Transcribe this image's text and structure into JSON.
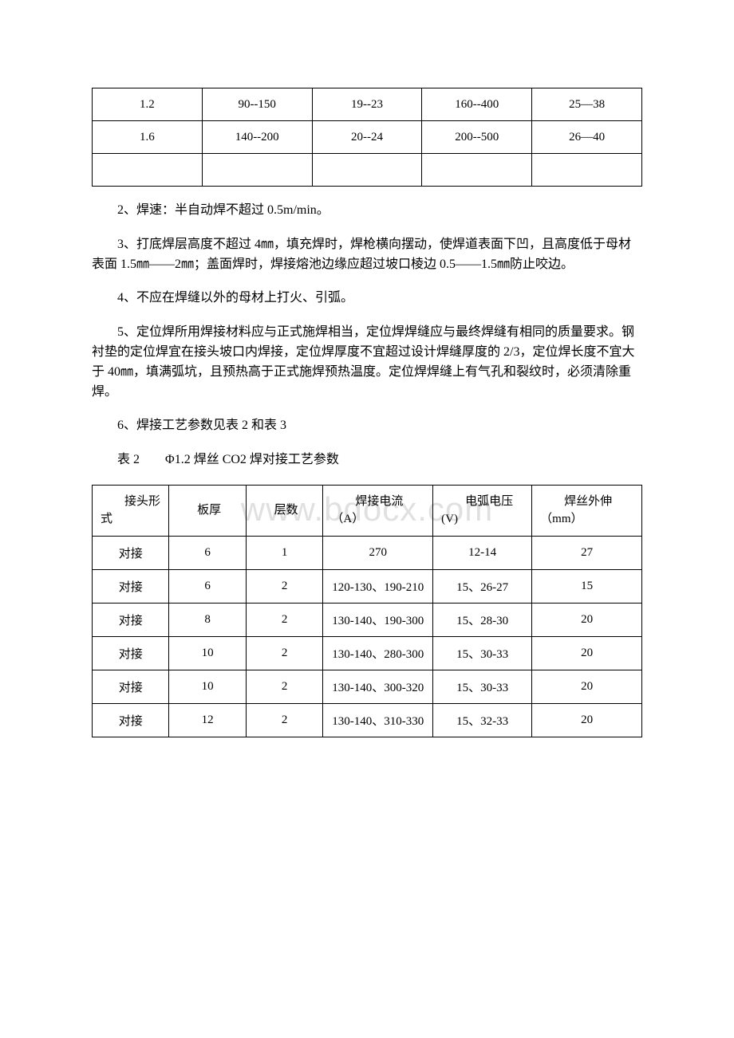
{
  "watermark_text": "www.bdocx.com",
  "table1": {
    "rows": [
      [
        "1.2",
        "90--150",
        "19--23",
        "160--400",
        "25—38"
      ],
      [
        "1.6",
        "140--200",
        "20--24",
        "200--500",
        "26—40"
      ],
      [
        "",
        "",
        "",
        "",
        ""
      ]
    ]
  },
  "paragraphs": {
    "p2": "2、焊速：半自动焊不超过 0.5m/min。",
    "p3": "3、打底焊层高度不超过 4㎜，填充焊时，焊枪横向摆动，使焊道表面下凹，且高度低于母材表面 1.5㎜——2㎜；盖面焊时，焊接熔池边缘应超过坡口棱边 0.5——1.5㎜防止咬边。",
    "p4": "4、不应在焊缝以外的母材上打火、引弧。",
    "p5": "5、定位焊所用焊接材料应与正式施焊相当，定位焊焊缝应与最终焊缝有相同的质量要求。钢衬垫的定位焊宜在接头坡口内焊接，定位焊厚度不宜超过设计焊缝厚度的 2/3，定位焊长度不宜大于 40㎜，填满弧坑，且预热高于正式施焊预热温度。定位焊焊缝上有气孔和裂纹时，必须清除重焊。",
    "p6": "6、焊接工艺参数见表 2 和表 3",
    "caption": "表 2　　Φ1.2 焊丝 CO2 焊对接工艺参数"
  },
  "table2": {
    "headers": [
      "　　接头形式",
      "板厚",
      "层数",
      "　　焊接电流（A）",
      "　　电弧电压(V)",
      "　　焊丝外伸（mm）"
    ],
    "rows": [
      [
        "对接",
        "6",
        "1",
        "270",
        "12-14",
        "27"
      ],
      [
        "对接",
        "6",
        "2",
        "120-130、190-210",
        "15、26-27",
        "15"
      ],
      [
        "对接",
        "8",
        "2",
        "130-140、190-300",
        "15、28-30",
        "20"
      ],
      [
        "对接",
        "10",
        "2",
        "130-140、280-300",
        "15、30-33",
        "20"
      ],
      [
        "对接",
        "10",
        "2",
        "130-140、300-320",
        "15、30-33",
        "20"
      ],
      [
        "对接",
        "12",
        "2",
        "130-140、310-330",
        "15、32-33",
        "20"
      ]
    ]
  }
}
